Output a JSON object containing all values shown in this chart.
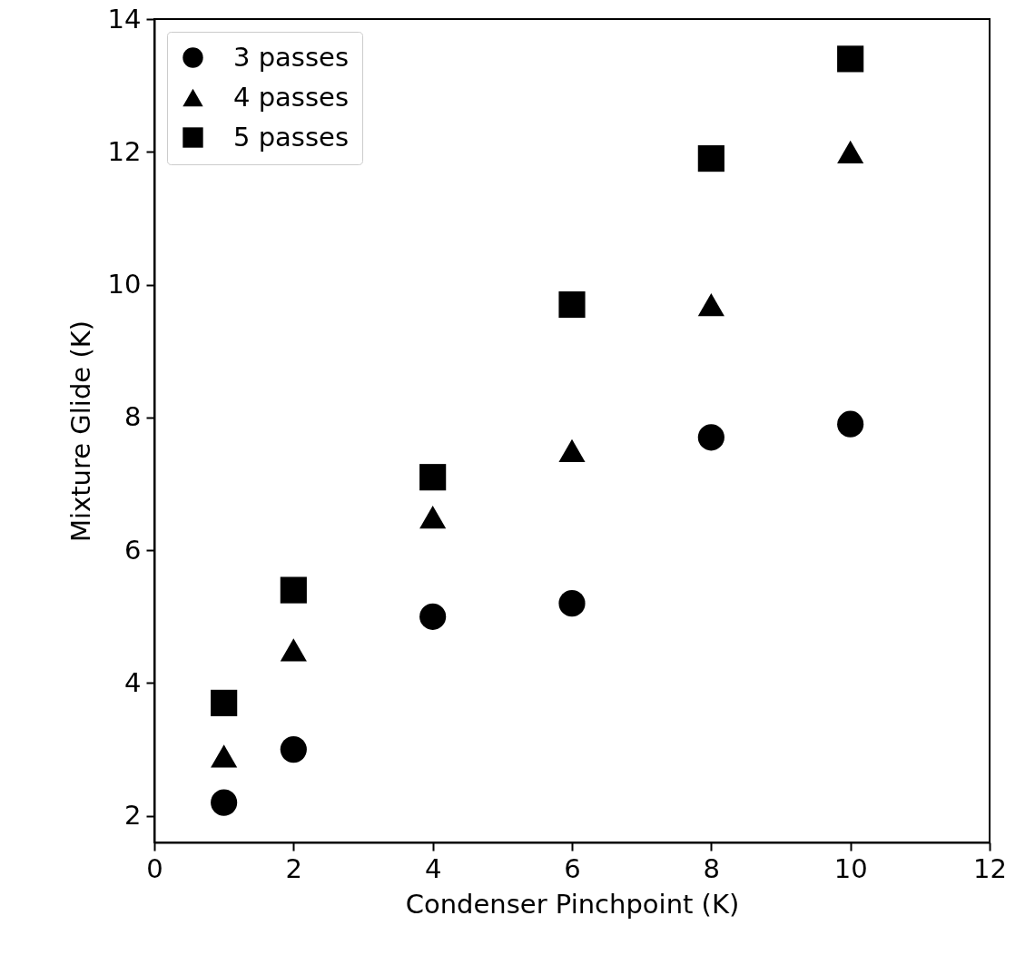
{
  "chart_data": {
    "type": "scatter",
    "xlabel": "Condenser Pinchpoint (K)",
    "ylabel": "Mixture Glide (K)",
    "x": [
      1,
      2,
      4,
      6,
      8,
      10
    ],
    "series": [
      {
        "name": "3 passes",
        "color": "#000000",
        "marker": "circle",
        "values": [
          2.2,
          3.0,
          5.0,
          5.2,
          7.7,
          7.9
        ]
      },
      {
        "name": "4 passes",
        "color": "#000000",
        "marker": "triangle",
        "values": [
          2.9,
          4.5,
          6.5,
          7.5,
          9.7,
          12.0
        ]
      },
      {
        "name": "5 passes",
        "color": "#000000",
        "marker": "square",
        "values": [
          3.7,
          5.4,
          7.1,
          9.7,
          11.9,
          13.4
        ]
      }
    ],
    "xlim": [
      0,
      12
    ],
    "xticks": [
      0,
      2,
      4,
      6,
      8,
      10,
      12
    ],
    "ylim": [
      1.6,
      14
    ],
    "yticks": [
      2,
      4,
      6,
      8,
      10,
      12,
      14
    ],
    "grid": false,
    "legend": "top left"
  }
}
